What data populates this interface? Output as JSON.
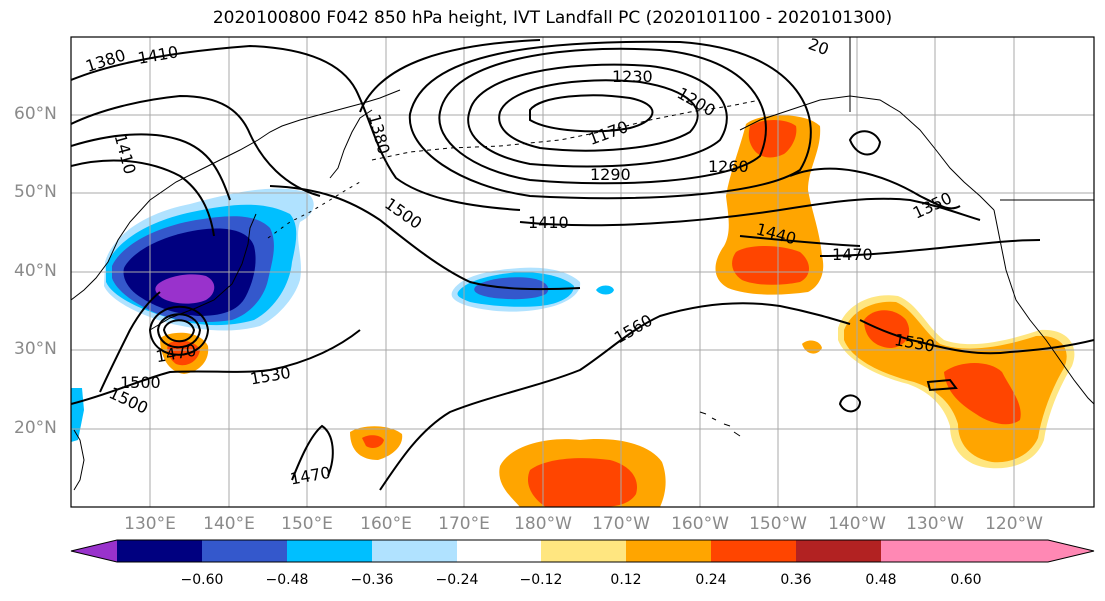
{
  "title": "2020100800 F042 850 hPa height, IVT Landfall PC (2020101100 - 2020101300)",
  "map": {
    "lat_labels": [
      "60°N",
      "50°N",
      "40°N",
      "30°N",
      "20°N"
    ],
    "lon_labels": [
      "130°E",
      "140°E",
      "150°E",
      "160°E",
      "170°E",
      "180°W",
      "170°W",
      "160°W",
      "150°W",
      "140°W",
      "130°W",
      "120°W"
    ],
    "contour_labels": [
      "1380",
      "1410",
      "1410",
      "1230",
      "1200",
      "1170",
      "1380",
      "1290",
      "1260",
      "1350",
      "1500",
      "1410",
      "1440",
      "1470",
      "1560",
      "1530",
      "1470",
      "1500",
      "1500",
      "1530",
      "1470",
      "20"
    ]
  },
  "colorbar": {
    "colors": [
      "#9932cc",
      "#000080",
      "#3458cc",
      "#00bfff",
      "#b0e2ff",
      "#ffffff",
      "#ffe680",
      "#ffa500",
      "#ff4500",
      "#b22222",
      "#ff88b4"
    ],
    "ticks": [
      "−0.60",
      "−0.48",
      "−0.36",
      "−0.24",
      "−0.12",
      "0.12",
      "0.24",
      "0.36",
      "0.48",
      "0.60"
    ]
  }
}
